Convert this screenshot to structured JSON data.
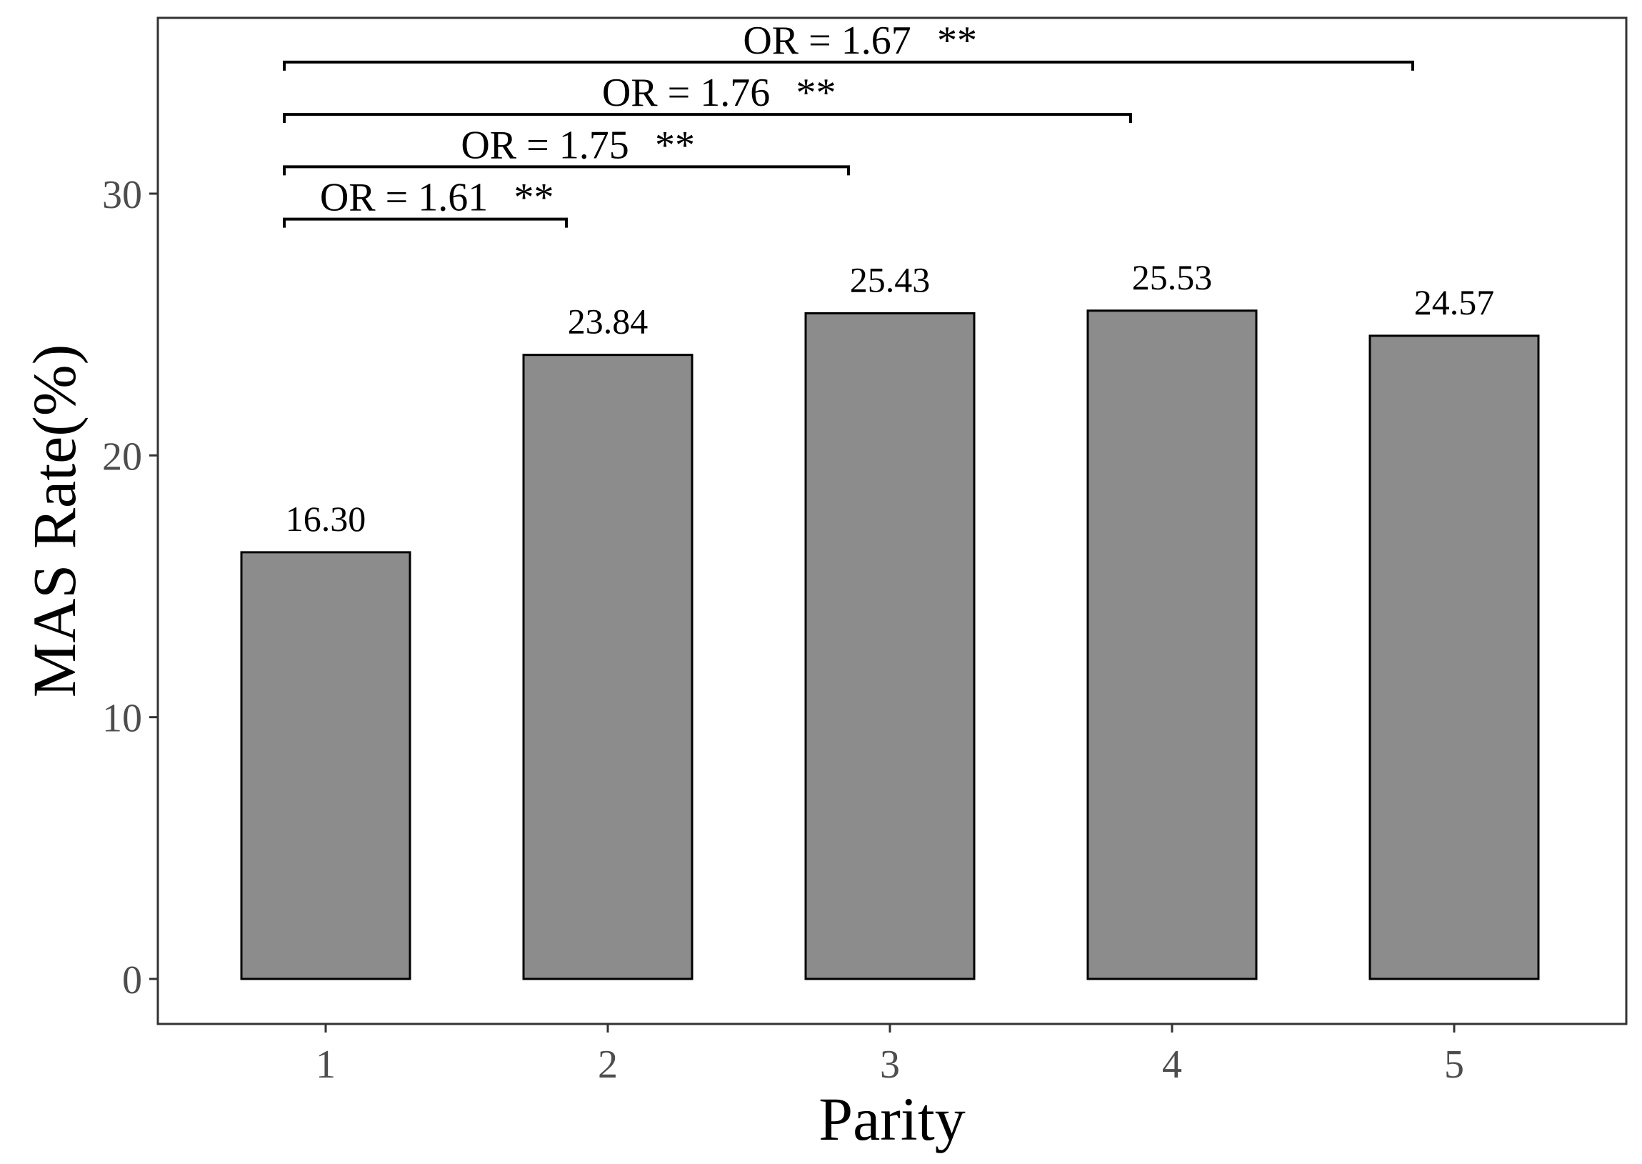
{
  "chart_data": {
    "type": "bar",
    "title": "",
    "xlabel": "Parity",
    "ylabel": "MAS Rate(%)",
    "categories": [
      "1",
      "2",
      "3",
      "4",
      "5"
    ],
    "values": [
      16.3,
      23.84,
      25.43,
      25.53,
      24.57
    ],
    "value_labels": [
      "16.30",
      "23.84",
      "25.43",
      "25.53",
      "24.57"
    ],
    "ylim": [
      -1.6,
      36.9
    ],
    "yticks": [
      0,
      10,
      20,
      30
    ],
    "ytick_labels": [
      "0",
      "10",
      "20",
      "30"
    ],
    "grid": false,
    "bar_color": "#8c8c8c",
    "comparisons": [
      {
        "from": "1",
        "to": "2",
        "y": 29.0,
        "or_label": "OR = 1.61",
        "sig": "**"
      },
      {
        "from": "1",
        "to": "3",
        "y": 31.0,
        "or_label": "OR = 1.75",
        "sig": "**"
      },
      {
        "from": "1",
        "to": "4",
        "y": 33.0,
        "or_label": "OR = 1.76",
        "sig": "**"
      },
      {
        "from": "1",
        "to": "5",
        "y": 35.0,
        "or_label": "OR = 1.67",
        "sig": "**"
      }
    ]
  }
}
